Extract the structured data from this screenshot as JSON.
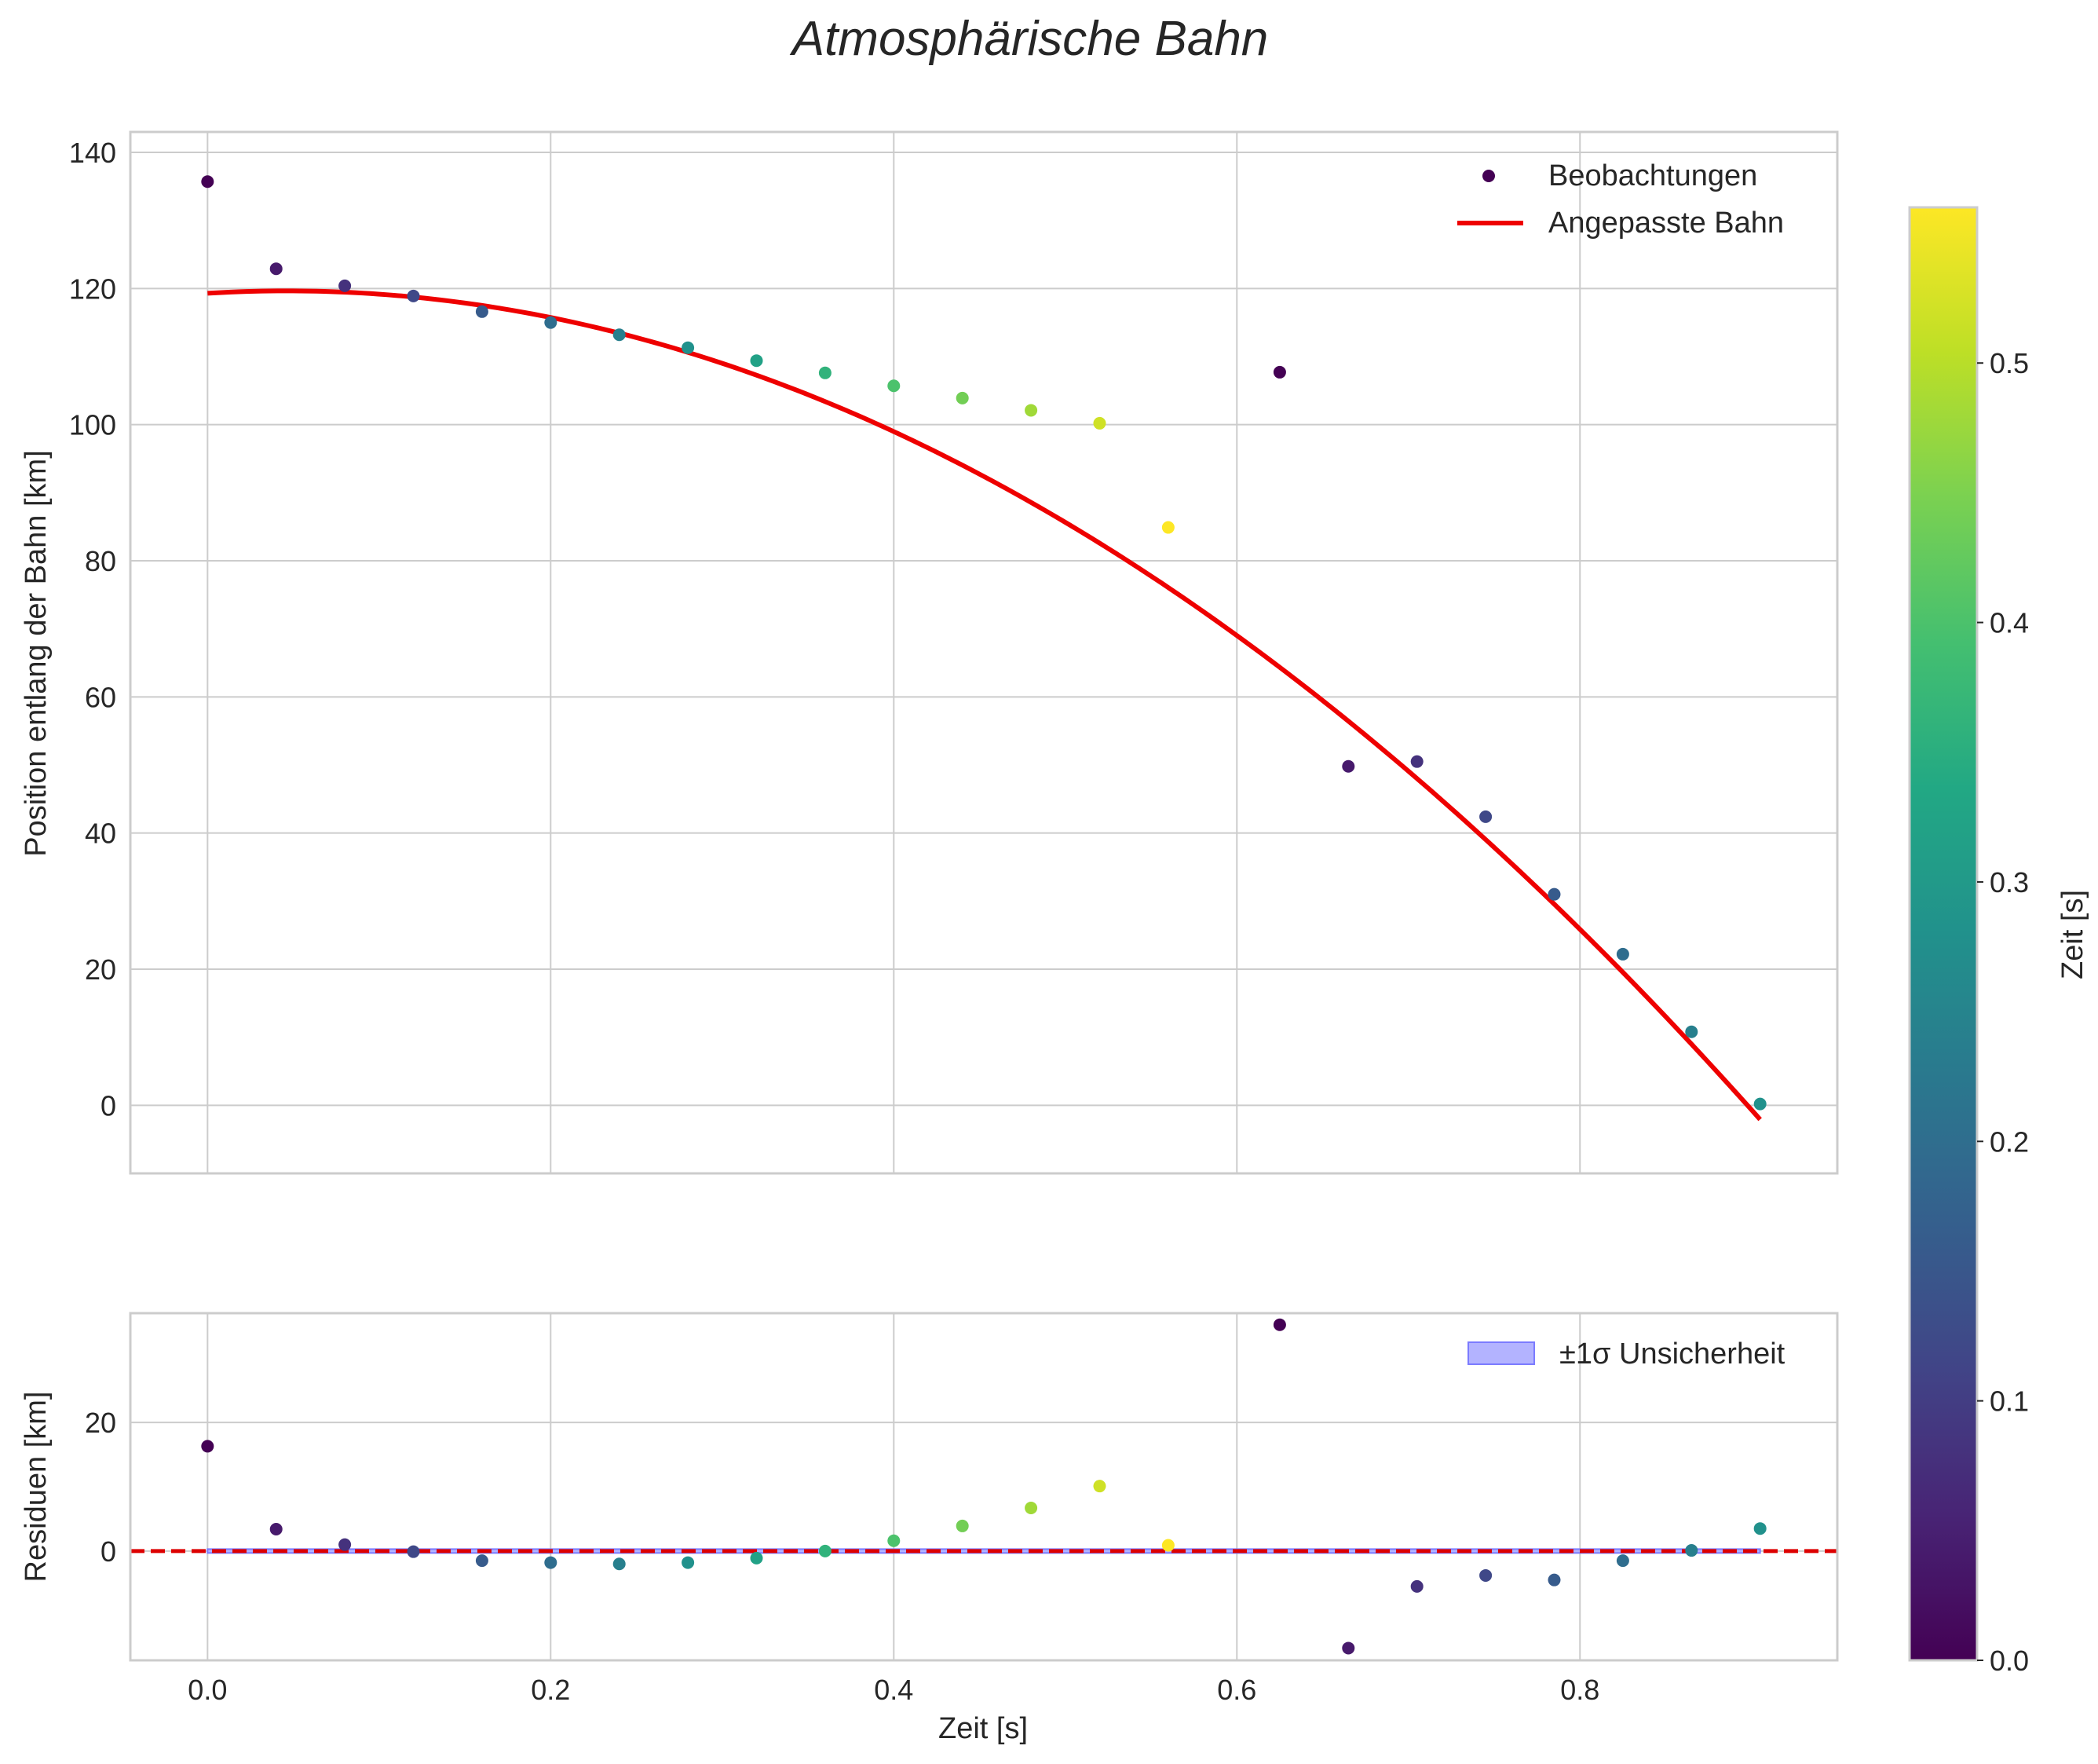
{
  "chart_data": {
    "title": "Atmosphärische Bahn",
    "type": "scatter",
    "colormap": "viridis",
    "colors": {
      "fit_line": "#ee0000",
      "zero_line": "#dd0000",
      "band_fill": "#b3b3ff",
      "band_edge": "#7b7bff",
      "grid": "#cccccc",
      "axes_edge": "#cccccc"
    },
    "main_plot": {
      "ylabel": "Position entlang der Bahn [km]",
      "xlim": [
        -0.045,
        0.95
      ],
      "ylim": [
        -10,
        143
      ],
      "xticks": [
        0.0,
        0.2,
        0.4,
        0.6,
        0.8
      ],
      "yticks": [
        0,
        20,
        40,
        60,
        80,
        100,
        120,
        140
      ],
      "legend_position": "top-right",
      "series": [
        {
          "name": "Beobachtungen",
          "kind": "scatter",
          "points": [
            {
              "x": 0.0,
              "y": 135.7,
              "c": 0.0
            },
            {
              "x": 0.04,
              "y": 122.9,
              "c": 0.04
            },
            {
              "x": 0.08,
              "y": 120.4,
              "c": 0.08
            },
            {
              "x": 0.12,
              "y": 118.9,
              "c": 0.12
            },
            {
              "x": 0.16,
              "y": 116.6,
              "c": 0.16
            },
            {
              "x": 0.2,
              "y": 115.0,
              "c": 0.2
            },
            {
              "x": 0.24,
              "y": 113.2,
              "c": 0.24
            },
            {
              "x": 0.28,
              "y": 111.3,
              "c": 0.28
            },
            {
              "x": 0.32,
              "y": 109.4,
              "c": 0.32
            },
            {
              "x": 0.36,
              "y": 107.6,
              "c": 0.36
            },
            {
              "x": 0.4,
              "y": 105.7,
              "c": 0.4
            },
            {
              "x": 0.44,
              "y": 103.9,
              "c": 0.44
            },
            {
              "x": 0.48,
              "y": 102.1,
              "c": 0.48
            },
            {
              "x": 0.52,
              "y": 100.2,
              "c": 0.52
            },
            {
              "x": 0.56,
              "y": 84.9,
              "c": 0.56
            },
            {
              "x": 0.625,
              "y": 107.7,
              "c": 0.0
            },
            {
              "x": 0.665,
              "y": 49.8,
              "c": 0.04
            },
            {
              "x": 0.705,
              "y": 50.5,
              "c": 0.08
            },
            {
              "x": 0.745,
              "y": 42.4,
              "c": 0.12
            },
            {
              "x": 0.785,
              "y": 31.0,
              "c": 0.16
            },
            {
              "x": 0.825,
              "y": 22.2,
              "c": 0.2
            },
            {
              "x": 0.865,
              "y": 10.8,
              "c": 0.24
            },
            {
              "x": 0.905,
              "y": 0.2,
              "c": 0.28
            }
          ]
        },
        {
          "name": "Angepasste Bahn",
          "kind": "line",
          "model": {
            "form": "y = a + b*x + c*x^2",
            "a": 119.3,
            "b": 15.2,
            "c": -165.0,
            "x_range": [
              0.0,
              0.905
            ]
          }
        }
      ]
    },
    "residual_plot": {
      "xlabel": "Zeit [s]",
      "ylabel": "Residuen [km]",
      "xlim": [
        -0.045,
        0.95
      ],
      "ylim": [
        -17,
        37
      ],
      "xticks": [
        0.0,
        0.2,
        0.4,
        0.6,
        0.8
      ],
      "xtick_labels": [
        "0.0",
        "0.2",
        "0.4",
        "0.6",
        "0.8"
      ],
      "yticks": [
        0,
        20
      ],
      "band_sigma": 0.3,
      "legend_position": "top-right",
      "legend": "±1σ Unsicherheit",
      "points": [
        {
          "x": 0.0,
          "y": 16.3,
          "c": 0.0
        },
        {
          "x": 0.04,
          "y": 3.4,
          "c": 0.04
        },
        {
          "x": 0.08,
          "y": 1.0,
          "c": 0.08
        },
        {
          "x": 0.12,
          "y": -0.1,
          "c": 0.12
        },
        {
          "x": 0.16,
          "y": -1.5,
          "c": 0.16
        },
        {
          "x": 0.2,
          "y": -1.8,
          "c": 0.2
        },
        {
          "x": 0.24,
          "y": -2.0,
          "c": 0.24
        },
        {
          "x": 0.28,
          "y": -1.8,
          "c": 0.28
        },
        {
          "x": 0.32,
          "y": -1.1,
          "c": 0.32
        },
        {
          "x": 0.36,
          "y": 0.0,
          "c": 0.36
        },
        {
          "x": 0.4,
          "y": 1.6,
          "c": 0.4
        },
        {
          "x": 0.44,
          "y": 3.9,
          "c": 0.44
        },
        {
          "x": 0.48,
          "y": 6.7,
          "c": 0.48
        },
        {
          "x": 0.52,
          "y": 10.1,
          "c": 0.52
        },
        {
          "x": 0.56,
          "y": 0.9,
          "c": 0.56
        },
        {
          "x": 0.625,
          "y": 35.2,
          "c": 0.0
        },
        {
          "x": 0.665,
          "y": -15.1,
          "c": 0.04
        },
        {
          "x": 0.705,
          "y": -5.5,
          "c": 0.08
        },
        {
          "x": 0.745,
          "y": -3.8,
          "c": 0.12
        },
        {
          "x": 0.785,
          "y": -4.5,
          "c": 0.16
        },
        {
          "x": 0.825,
          "y": -1.5,
          "c": 0.2
        },
        {
          "x": 0.865,
          "y": 0.1,
          "c": 0.24
        },
        {
          "x": 0.905,
          "y": 3.5,
          "c": 0.28
        }
      ]
    },
    "colorbar": {
      "label": "Zeit [s]",
      "range": [
        0.0,
        0.56
      ],
      "ticks": [
        0.0,
        0.1,
        0.2,
        0.3,
        0.4,
        0.5
      ]
    }
  }
}
